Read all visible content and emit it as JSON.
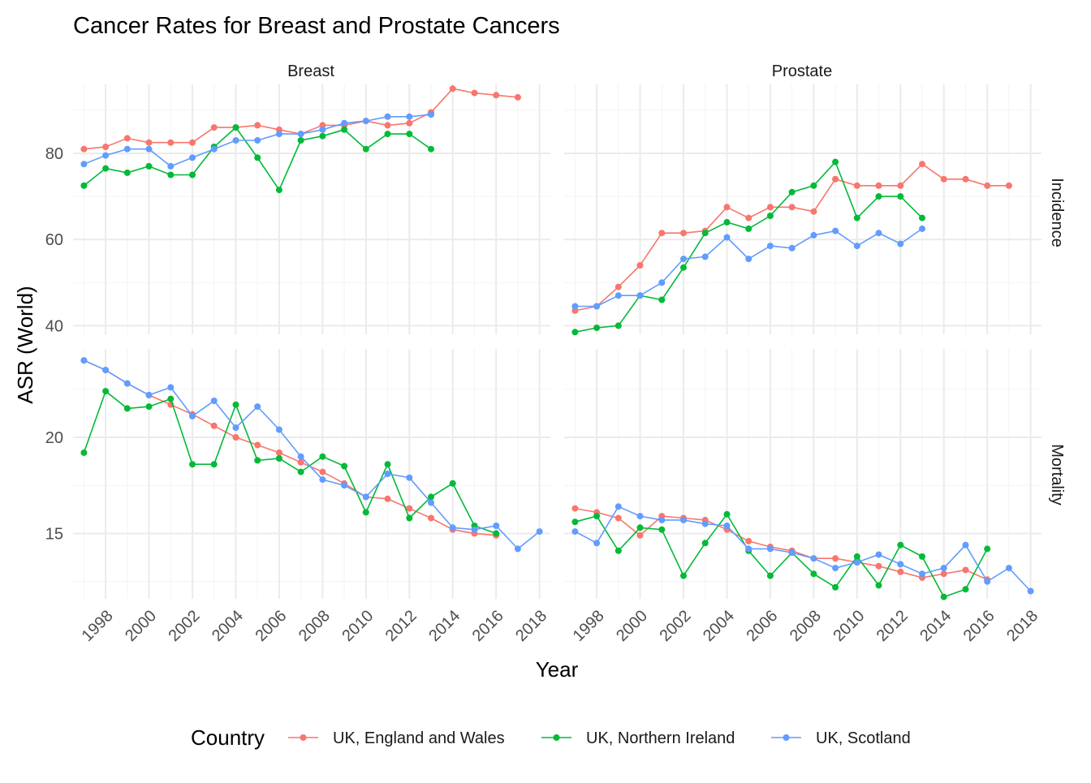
{
  "chart_data": {
    "type": "line",
    "title": "Cancer Rates for Breast and Prostate Cancers",
    "xlabel": "Year",
    "ylabel": "ASR (World)",
    "x_ticks": [
      1998,
      2000,
      2002,
      2004,
      2006,
      2008,
      2010,
      2012,
      2014,
      2016,
      2018
    ],
    "xlim": [
      1996.5,
      2018.5
    ],
    "grid": true,
    "legend": {
      "title": "Country",
      "position": "bottom",
      "entries": [
        "UK, England and Wales",
        "UK, Northern Ireland",
        "UK, Scotland"
      ]
    },
    "colors": {
      "UK, England and Wales": "#F8766D",
      "UK, Northern Ireland": "#00BA38",
      "UK, Scotland": "#619CFF"
    },
    "facets": {
      "columns": [
        "Breast",
        "Prostate"
      ],
      "rows": [
        "Incidence",
        "Mortality"
      ]
    },
    "row_axes": {
      "Incidence": {
        "ylim": [
          38,
          96
        ],
        "ticks": [
          40,
          60,
          80
        ]
      },
      "Mortality": {
        "ylim": [
          11.6,
          24.6
        ],
        "ticks": [
          15,
          20
        ]
      }
    },
    "panels": [
      {
        "cancer": "Breast",
        "measure": "Incidence",
        "series": [
          {
            "name": "UK, England and Wales",
            "x": [
              1997,
              1998,
              1999,
              2000,
              2001,
              2002,
              2003,
              2004,
              2005,
              2006,
              2007,
              2008,
              2009,
              2010,
              2011,
              2012,
              2013,
              2014,
              2015,
              2016,
              2017
            ],
            "y": [
              81,
              81.5,
              83.5,
              82.5,
              82.5,
              82.5,
              86,
              86,
              86.5,
              85.5,
              84.5,
              86.5,
              86.5,
              87.5,
              86.5,
              87,
              89.5,
              95,
              94,
              93.5,
              93
            ]
          },
          {
            "name": "UK, Northern Ireland",
            "x": [
              1997,
              1998,
              1999,
              2000,
              2001,
              2002,
              2003,
              2004,
              2005,
              2006,
              2007,
              2008,
              2009,
              2010,
              2011,
              2012,
              2013
            ],
            "y": [
              72.5,
              76.5,
              75.5,
              77,
              75,
              75,
              81.5,
              86,
              79,
              71.5,
              83,
              84,
              85.5,
              81,
              84.5,
              84.5,
              81
            ]
          },
          {
            "name": "UK, Scotland",
            "x": [
              1997,
              1998,
              1999,
              2000,
              2001,
              2002,
              2003,
              2004,
              2005,
              2006,
              2007,
              2008,
              2009,
              2010,
              2011,
              2012,
              2013
            ],
            "y": [
              77.5,
              79.5,
              81,
              81,
              77,
              79,
              81,
              83,
              83,
              84.5,
              84.5,
              85.5,
              87,
              87.5,
              88.5,
              88.5,
              89
            ]
          }
        ]
      },
      {
        "cancer": "Prostate",
        "measure": "Incidence",
        "series": [
          {
            "name": "UK, England and Wales",
            "x": [
              1997,
              1998,
              1999,
              2000,
              2001,
              2002,
              2003,
              2004,
              2005,
              2006,
              2007,
              2008,
              2009,
              2010,
              2011,
              2012,
              2013,
              2014,
              2015,
              2016,
              2017
            ],
            "y": [
              43.5,
              44.5,
              49,
              54,
              61.5,
              61.5,
              62,
              67.5,
              65,
              67.5,
              67.5,
              66.5,
              74,
              72.5,
              72.5,
              72.5,
              77.5,
              74,
              74,
              72.5,
              72.5
            ]
          },
          {
            "name": "UK, Northern Ireland",
            "x": [
              1997,
              1998,
              1999,
              2000,
              2001,
              2002,
              2003,
              2004,
              2005,
              2006,
              2007,
              2008,
              2009,
              2010,
              2011,
              2012,
              2013
            ],
            "y": [
              38.5,
              39.5,
              40,
              47,
              46,
              53.5,
              61.5,
              64,
              62.5,
              65.5,
              71,
              72.5,
              78,
              65,
              70,
              70,
              65
            ]
          },
          {
            "name": "UK, Scotland",
            "x": [
              1997,
              1998,
              1999,
              2000,
              2001,
              2002,
              2003,
              2004,
              2005,
              2006,
              2007,
              2008,
              2009,
              2010,
              2011,
              2012,
              2013
            ],
            "y": [
              44.5,
              44.5,
              47,
              47,
              50,
              55.5,
              56,
              60.5,
              55.5,
              58.5,
              58,
              61,
              62,
              58.5,
              61.5,
              59,
              62.5
            ]
          }
        ]
      },
      {
        "cancer": "Breast",
        "measure": "Mortality",
        "series": [
          {
            "name": "UK, England and Wales",
            "x": [
              1997,
              1998,
              1999,
              2000,
              2001,
              2002,
              2003,
              2004,
              2005,
              2006,
              2007,
              2008,
              2009,
              2010,
              2011,
              2012,
              2013,
              2014,
              2015,
              2016
            ],
            "y": [
              24,
              23.5,
              22.8,
              22.2,
              21.7,
              21.2,
              20.6,
              20,
              19.6,
              19.2,
              18.7,
              18.2,
              17.6,
              16.9,
              16.8,
              16.3,
              15.8,
              15.2,
              15.0,
              14.9
            ]
          },
          {
            "name": "UK, Northern Ireland",
            "x": [
              1997,
              1998,
              1999,
              2000,
              2001,
              2002,
              2003,
              2004,
              2005,
              2006,
              2007,
              2008,
              2009,
              2010,
              2011,
              2012,
              2013,
              2014,
              2015,
              2016
            ],
            "y": [
              19.2,
              22.4,
              21.5,
              21.6,
              22.0,
              18.6,
              18.6,
              21.7,
              18.8,
              18.9,
              18.2,
              19.0,
              18.5,
              16.1,
              18.6,
              15.8,
              16.9,
              17.6,
              15.4,
              15.0
            ]
          },
          {
            "name": "UK, Scotland",
            "x": [
              1997,
              1998,
              1999,
              2000,
              2001,
              2002,
              2003,
              2004,
              2005,
              2006,
              2007,
              2008,
              2009,
              2010,
              2011,
              2012,
              2013,
              2014,
              2015,
              2016,
              2017,
              2018
            ],
            "y": [
              24,
              23.5,
              22.8,
              22.2,
              22.6,
              21.1,
              21.9,
              20.5,
              21.6,
              20.4,
              19.0,
              17.8,
              17.5,
              16.9,
              18.1,
              17.9,
              16.6,
              15.3,
              15.2,
              15.4,
              14.2,
              15.1
            ]
          }
        ]
      },
      {
        "cancer": "Prostate",
        "measure": "Mortality",
        "series": [
          {
            "name": "UK, England and Wales",
            "x": [
              1997,
              1998,
              1999,
              2000,
              2001,
              2002,
              2003,
              2004,
              2005,
              2006,
              2007,
              2008,
              2009,
              2010,
              2011,
              2012,
              2013,
              2014,
              2015,
              2016
            ],
            "y": [
              16.3,
              16.1,
              15.8,
              14.9,
              15.9,
              15.8,
              15.7,
              15.2,
              14.6,
              14.3,
              14.1,
              13.7,
              13.7,
              13.5,
              13.3,
              13.0,
              12.7,
              12.9,
              13.1,
              12.6
            ]
          },
          {
            "name": "UK, Northern Ireland",
            "x": [
              1997,
              1998,
              1999,
              2000,
              2001,
              2002,
              2003,
              2004,
              2005,
              2006,
              2007,
              2008,
              2009,
              2010,
              2011,
              2012,
              2013,
              2014,
              2015,
              2016
            ],
            "y": [
              15.6,
              15.9,
              14.1,
              15.3,
              15.2,
              12.8,
              14.5,
              16.0,
              14.1,
              12.8,
              14.0,
              12.9,
              12.2,
              13.8,
              12.3,
              14.4,
              13.8,
              11.7,
              12.1,
              14.2
            ]
          },
          {
            "name": "UK, Scotland",
            "x": [
              1997,
              1998,
              1999,
              2000,
              2001,
              2002,
              2003,
              2004,
              2005,
              2006,
              2007,
              2008,
              2009,
              2010,
              2011,
              2012,
              2013,
              2014,
              2015,
              2016,
              2017,
              2018
            ],
            "y": [
              15.1,
              14.5,
              16.4,
              15.9,
              15.7,
              15.7,
              15.5,
              15.4,
              14.2,
              14.2,
              14.0,
              13.7,
              13.2,
              13.5,
              13.9,
              13.4,
              12.9,
              13.2,
              14.4,
              12.5,
              13.2,
              12.0
            ]
          }
        ]
      }
    ]
  }
}
